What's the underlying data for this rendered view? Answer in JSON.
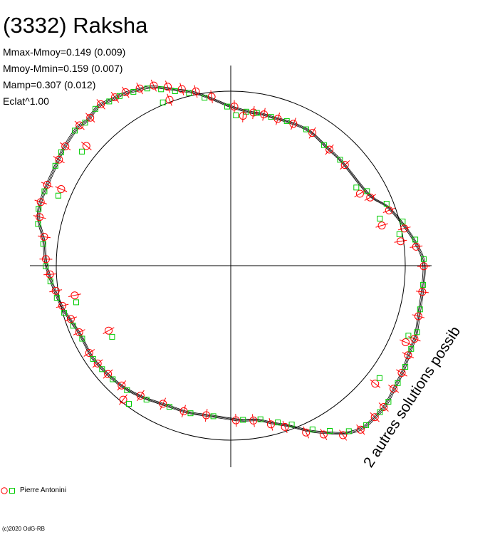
{
  "header": {
    "title": "(3332) Raksha",
    "stats": [
      "Mmax-Mmoy=0.149 (0.009)",
      "Mmoy-Mmin=0.159 (0.007)",
      "Mamp=0.307 (0.012)",
      "Eclat^1.00"
    ]
  },
  "annotation": "2 autres solutions possib",
  "legend": {
    "observer": "Pierre Antonini"
  },
  "footer": {
    "copyright": "(c)2020 OdG-RB"
  },
  "colors": {
    "observed_red": "#ff0000",
    "observed_green": "#00cc00",
    "curve": "#000000",
    "axes": "#000000"
  },
  "icons": {
    "legend_red": "circle-marker-icon",
    "legend_green": "square-marker-icon"
  },
  "chart_data": {
    "type": "scatter",
    "projection": "polar",
    "title": "(3332) Raksha",
    "reference_circle_radius": 1.0,
    "series": [
      {
        "name": "Pierre Antonini",
        "marker_red": "circle",
        "marker_green": "square",
        "points": [
          {
            "x": -1.06,
            "y": 0.017
          },
          {
            "x": -1.072,
            "y": 0.145
          },
          {
            "x": -1.1,
            "y": 0.259
          },
          {
            "x": -1.095,
            "y": 0.345
          },
          {
            "x": -1.06,
            "y": 0.445
          },
          {
            "x": -0.995,
            "y": 0.59
          },
          {
            "x": -0.96,
            "y": 0.667
          },
          {
            "x": -0.88,
            "y": 0.789
          },
          {
            "x": -0.82,
            "y": 0.834
          },
          {
            "x": -0.76,
            "y": 0.912
          },
          {
            "x": -0.68,
            "y": 0.953
          },
          {
            "x": -0.62,
            "y": 0.983
          },
          {
            "x": -0.54,
            "y": 1.006
          },
          {
            "x": -0.46,
            "y": 1.024
          },
          {
            "x": -0.38,
            "y": 1.018
          },
          {
            "x": -0.3,
            "y": 1.006
          },
          {
            "x": -0.22,
            "y": 0.994
          },
          {
            "x": -0.13,
            "y": 0.965
          },
          {
            "x": 0.0,
            "y": 0.912
          },
          {
            "x": 0.11,
            "y": 0.88
          },
          {
            "x": 0.17,
            "y": 0.871
          },
          {
            "x": 0.25,
            "y": 0.847
          },
          {
            "x": 0.34,
            "y": 0.821
          },
          {
            "x": 0.45,
            "y": 0.771
          },
          {
            "x": 0.55,
            "y": 0.678
          },
          {
            "x": 0.64,
            "y": 0.592
          },
          {
            "x": 0.79,
            "y": 0.409
          },
          {
            "x": 0.9,
            "y": 0.336
          },
          {
            "x": 0.99,
            "y": 0.233
          },
          {
            "x": 1.06,
            "y": 0.129
          },
          {
            "x": 1.106,
            "y": 0.017
          },
          {
            "x": 1.1,
            "y": -0.13
          },
          {
            "x": 1.08,
            "y": -0.27
          },
          {
            "x": 1.06,
            "y": -0.4
          },
          {
            "x": 1.025,
            "y": -0.495
          },
          {
            "x": 0.99,
            "y": -0.597
          },
          {
            "x": 0.945,
            "y": -0.689
          },
          {
            "x": 0.89,
            "y": -0.795
          },
          {
            "x": 0.84,
            "y": -0.854
          },
          {
            "x": 0.76,
            "y": -0.927
          },
          {
            "x": 0.66,
            "y": -0.96
          },
          {
            "x": 0.55,
            "y": -0.957
          },
          {
            "x": 0.45,
            "y": -0.947
          },
          {
            "x": 0.33,
            "y": -0.917
          },
          {
            "x": 0.25,
            "y": -0.904
          },
          {
            "x": 0.15,
            "y": -0.884
          },
          {
            "x": 0.05,
            "y": -0.885
          },
          {
            "x": -0.12,
            "y": -0.86
          },
          {
            "x": -0.25,
            "y": -0.84
          },
          {
            "x": -0.37,
            "y": -0.8
          },
          {
            "x": -0.5,
            "y": -0.756
          },
          {
            "x": -0.61,
            "y": -0.7
          },
          {
            "x": -0.69,
            "y": -0.636
          },
          {
            "x": -0.75,
            "y": -0.577
          },
          {
            "x": -0.8,
            "y": -0.517
          },
          {
            "x": -0.86,
            "y": -0.4
          },
          {
            "x": -0.91,
            "y": -0.325
          },
          {
            "x": -0.96,
            "y": -0.25
          },
          {
            "x": -1.0,
            "y": -0.164
          },
          {
            "x": -1.035,
            "y": -0.07
          },
          {
            "x": -0.84,
            "y": 0.67
          },
          {
            "x": -0.37,
            "y": 0.943
          },
          {
            "x": 0.05,
            "y": 0.86
          },
          {
            "x": 0.73,
            "y": 0.43
          },
          {
            "x": 0.86,
            "y": 0.25
          },
          {
            "x": 0.97,
            "y": 0.16
          },
          {
            "x": -0.89,
            "y": -0.19
          },
          {
            "x": -0.69,
            "y": -0.39
          },
          {
            "x": -0.6,
            "y": -0.78
          },
          {
            "x": 0.84,
            "y": -0.66
          },
          {
            "x": 1.01,
            "y": -0.42
          },
          {
            "x": -0.98,
            "y": 0.42
          }
        ]
      }
    ]
  }
}
